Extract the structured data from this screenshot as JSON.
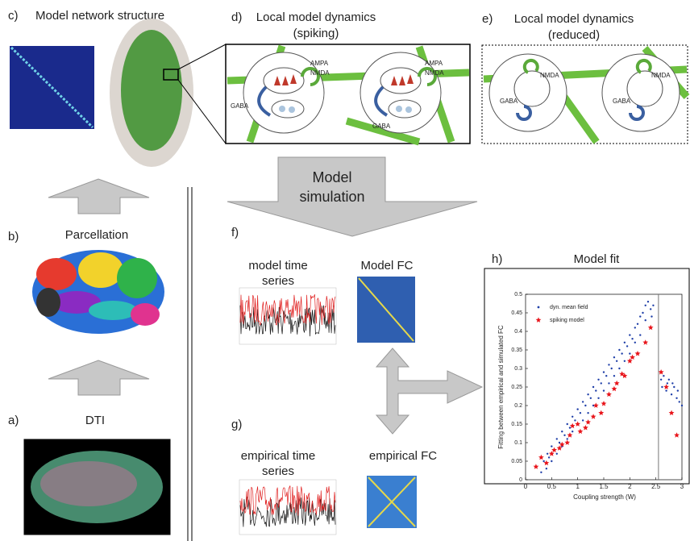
{
  "panel_c": {
    "letter": "c)",
    "title": "Model network structure"
  },
  "panel_d": {
    "letter": "d)",
    "title": [
      "Local model dynamics",
      "(spiking)"
    ],
    "labels": [
      "AMPA",
      "NMDA",
      "GABA",
      "AMPA",
      "NMDA",
      "GABA"
    ]
  },
  "panel_e": {
    "letter": "e)",
    "title": [
      "Local model dynamics",
      "(reduced)"
    ],
    "labels": [
      "NMDA",
      "GABA",
      "NMDA",
      "GABA"
    ]
  },
  "simulation_arrow": [
    "Model",
    "simulation"
  ],
  "panel_b": {
    "letter": "b)",
    "title": "Parcellation"
  },
  "panel_a": {
    "letter": "a)",
    "title": "DTI"
  },
  "panel_f": {
    "letter": "f)",
    "series_title": [
      "model time",
      "series"
    ],
    "fc_title": "Model FC"
  },
  "panel_g": {
    "letter": "g)",
    "series_title": [
      "empirical time",
      "series"
    ],
    "fc_title": "empirical FC"
  },
  "panel_h": {
    "letter": "h)"
  },
  "chart_data": {
    "type": "scatter",
    "title": "Model fit",
    "xlabel": "Coupling strength (W)",
    "ylabel": "Fitting between empirical and simulated FC",
    "xlim": [
      0,
      3
    ],
    "ylim": [
      0,
      0.5
    ],
    "xticks": [
      0,
      0.5,
      1,
      1.5,
      2,
      2.5,
      3
    ],
    "yticks": [
      0,
      0.05,
      0.1,
      0.15,
      0.2,
      0.25,
      0.3,
      0.35,
      0.4,
      0.45,
      0.5
    ],
    "vline": 2.55,
    "legend": "upper left",
    "series": [
      {
        "name": "dyn. mean field",
        "color": "#1f3fa8",
        "marker": "dot",
        "x": [
          0.3,
          0.35,
          0.4,
          0.42,
          0.45,
          0.5,
          0.5,
          0.55,
          0.6,
          0.6,
          0.65,
          0.7,
          0.7,
          0.75,
          0.8,
          0.8,
          0.85,
          0.9,
          0.9,
          0.95,
          1.0,
          1.0,
          1.05,
          1.1,
          1.1,
          1.15,
          1.2,
          1.2,
          1.25,
          1.3,
          1.3,
          1.35,
          1.4,
          1.4,
          1.45,
          1.5,
          1.5,
          1.55,
          1.6,
          1.6,
          1.65,
          1.7,
          1.7,
          1.75,
          1.8,
          1.8,
          1.85,
          1.9,
          1.9,
          1.95,
          2.0,
          2.0,
          2.05,
          2.1,
          2.1,
          2.15,
          2.2,
          2.2,
          2.25,
          2.3,
          2.3,
          2.35,
          2.4,
          2.42,
          2.45,
          2.6,
          2.62,
          2.65,
          2.7,
          2.72,
          2.75,
          2.8,
          2.82,
          2.85,
          2.9,
          2.92,
          2.95,
          3.0
        ],
        "values": [
          0.02,
          0.05,
          0.03,
          0.07,
          0.06,
          0.09,
          0.05,
          0.08,
          0.11,
          0.07,
          0.1,
          0.13,
          0.09,
          0.12,
          0.15,
          0.11,
          0.14,
          0.17,
          0.13,
          0.16,
          0.19,
          0.15,
          0.18,
          0.21,
          0.16,
          0.2,
          0.23,
          0.18,
          0.22,
          0.25,
          0.2,
          0.24,
          0.27,
          0.22,
          0.26,
          0.29,
          0.24,
          0.28,
          0.31,
          0.26,
          0.3,
          0.33,
          0.28,
          0.32,
          0.35,
          0.3,
          0.34,
          0.37,
          0.32,
          0.36,
          0.39,
          0.34,
          0.38,
          0.41,
          0.37,
          0.42,
          0.44,
          0.39,
          0.45,
          0.47,
          0.43,
          0.48,
          0.46,
          0.44,
          0.47,
          0.27,
          0.25,
          0.28,
          0.24,
          0.26,
          0.27,
          0.23,
          0.26,
          0.25,
          0.22,
          0.24,
          0.21,
          0.2
        ]
      },
      {
        "name": "spiking model",
        "color": "#e8151b",
        "marker": "star",
        "x": [
          0.2,
          0.3,
          0.4,
          0.5,
          0.55,
          0.65,
          0.7,
          0.8,
          0.85,
          0.9,
          1.0,
          1.05,
          1.15,
          1.2,
          1.3,
          1.35,
          1.45,
          1.5,
          1.6,
          1.7,
          1.75,
          1.85,
          1.9,
          2.0,
          2.05,
          2.15,
          2.3,
          2.4,
          2.6,
          2.7,
          2.8,
          2.9
        ],
        "values": [
          0.035,
          0.06,
          0.045,
          0.07,
          0.08,
          0.085,
          0.095,
          0.1,
          0.12,
          0.145,
          0.15,
          0.13,
          0.14,
          0.155,
          0.17,
          0.2,
          0.18,
          0.205,
          0.23,
          0.245,
          0.26,
          0.285,
          0.28,
          0.32,
          0.33,
          0.34,
          0.37,
          0.41,
          0.29,
          0.25,
          0.18,
          0.12
        ]
      }
    ]
  }
}
